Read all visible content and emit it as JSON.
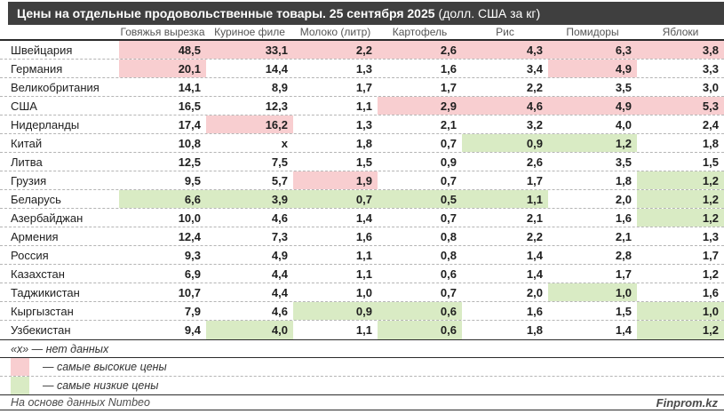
{
  "title": {
    "main": "Цены на отдельные продовольственные товары. 25 сентября 2025",
    "suffix": "(долл. США за кг)"
  },
  "colors": {
    "titlebar": "#3f3f3f",
    "highlight_high": "#f8ced0",
    "highlight_low": "#d9ebc4"
  },
  "chart_data": {
    "type": "table",
    "title": "Цены на отдельные продовольственные товары. 25 сентября 2025 (долл. США за кг)",
    "columns": [
      "Говяжья вырезка",
      "Куриное филе",
      "Молоко (литр)",
      "Картофель",
      "Рис",
      "Помидоры",
      "Яблоки"
    ],
    "rows": [
      {
        "country": "Швейцария",
        "values": [
          "48,5",
          "33,1",
          "2,2",
          "2,6",
          "4,3",
          "6,3",
          "3,8"
        ],
        "marks": "hhhhhhh"
      },
      {
        "country": "Германия",
        "values": [
          "20,1",
          "14,4",
          "1,3",
          "1,6",
          "3,4",
          "4,9",
          "3,3"
        ],
        "marks": "h----h-"
      },
      {
        "country": "Великобритания",
        "values": [
          "14,1",
          "8,9",
          "1,7",
          "1,7",
          "2,2",
          "3,5",
          "3,0"
        ],
        "marks": "-------"
      },
      {
        "country": "США",
        "values": [
          "16,5",
          "12,3",
          "1,1",
          "2,9",
          "4,6",
          "4,9",
          "5,3"
        ],
        "marks": "---hhhh"
      },
      {
        "country": "Нидерланды",
        "values": [
          "17,4",
          "16,2",
          "1,3",
          "2,1",
          "3,2",
          "4,0",
          "2,4"
        ],
        "marks": "-h-----"
      },
      {
        "country": "Китай",
        "values": [
          "10,8",
          "х",
          "1,8",
          "0,7",
          "0,9",
          "1,2",
          "1,8"
        ],
        "marks": "----ll-"
      },
      {
        "country": "Литва",
        "values": [
          "12,5",
          "7,5",
          "1,5",
          "0,9",
          "2,6",
          "3,5",
          "1,5"
        ],
        "marks": "-------"
      },
      {
        "country": "Грузия",
        "values": [
          "9,5",
          "5,7",
          "1,9",
          "0,7",
          "1,7",
          "1,8",
          "1,2"
        ],
        "marks": "--h---l"
      },
      {
        "country": "Беларусь",
        "values": [
          "6,6",
          "3,9",
          "0,7",
          "0,5",
          "1,1",
          "2,0",
          "1,2"
        ],
        "marks": "lllll-l"
      },
      {
        "country": "Азербайджан",
        "values": [
          "10,0",
          "4,6",
          "1,4",
          "0,7",
          "2,1",
          "1,6",
          "1,2"
        ],
        "marks": "------l"
      },
      {
        "country": "Армения",
        "values": [
          "12,4",
          "7,3",
          "1,6",
          "0,8",
          "2,2",
          "2,1",
          "1,3"
        ],
        "marks": "-------"
      },
      {
        "country": "Россия",
        "values": [
          "9,3",
          "4,9",
          "1,1",
          "0,8",
          "1,4",
          "2,8",
          "1,7"
        ],
        "marks": "-------"
      },
      {
        "country": "Казахстан",
        "values": [
          "6,9",
          "4,4",
          "1,1",
          "0,6",
          "1,4",
          "1,7",
          "1,2"
        ],
        "marks": "-------"
      },
      {
        "country": "Таджикистан",
        "values": [
          "10,7",
          "4,4",
          "1,0",
          "0,7",
          "2,0",
          "1,0",
          "1,6"
        ],
        "marks": "-----l-"
      },
      {
        "country": "Кыргызстан",
        "values": [
          "7,9",
          "4,6",
          "0,9",
          "0,6",
          "1,6",
          "1,5",
          "1,0"
        ],
        "marks": "--ll--l"
      },
      {
        "country": "Узбекистан",
        "values": [
          "9,4",
          "4,0",
          "1,1",
          "0,6",
          "1,8",
          "1,4",
          "1,2"
        ],
        "marks": "-l-l--l"
      }
    ],
    "legend": [
      {
        "swatch": "high",
        "label": "— самые высокие цены"
      },
      {
        "swatch": "low",
        "label": "— самые низкие цены"
      }
    ],
    "no_data_note": "«х» — нет данных"
  },
  "legend": {
    "no_data": "«х» — нет данных",
    "high_label": "— самые высокие цены",
    "low_label": "— самые низкие цены"
  },
  "footer": {
    "source": "На основе данных Numbeo",
    "brand": "Finprom.kz"
  }
}
